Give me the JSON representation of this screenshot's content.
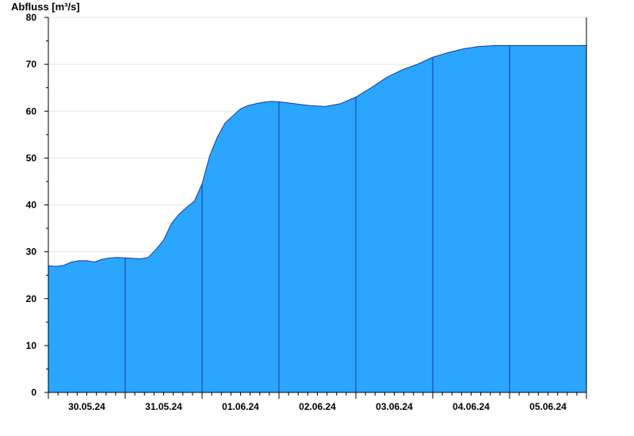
{
  "chart_data": {
    "type": "area",
    "ylabel": "Abfluss [m³/s]",
    "ylim": [
      0,
      80
    ],
    "yticks": [
      0,
      10,
      20,
      30,
      40,
      50,
      60,
      70,
      80
    ],
    "x_day_labels": [
      "30.05.24",
      "31.05.24",
      "01.06.24",
      "02.06.24",
      "03.06.24",
      "04.06.24",
      "05.06.24"
    ],
    "x_range_days": [
      0,
      7
    ],
    "grid": true,
    "fill_color": "#2aa6ff",
    "line_color": "#1a3aa0",
    "series": [
      {
        "x": [
          0.0,
          0.1,
          0.2,
          0.3,
          0.4,
          0.5,
          0.6,
          0.7,
          0.8,
          0.9,
          1.0,
          1.1,
          1.2,
          1.3,
          1.4,
          1.5,
          1.6,
          1.7,
          1.8,
          1.9,
          2.0,
          2.1,
          2.2,
          2.3,
          2.4,
          2.5,
          2.6,
          2.7,
          2.8,
          2.9,
          3.0,
          3.2,
          3.4,
          3.6,
          3.8,
          4.0,
          4.2,
          4.4,
          4.6,
          4.8,
          5.0,
          5.2,
          5.4,
          5.6,
          5.8,
          6.0,
          6.2,
          6.4,
          6.6,
          6.8,
          7.0
        ],
        "values": [
          27.0,
          26.9,
          27.1,
          27.8,
          28.1,
          28.1,
          27.8,
          28.4,
          28.7,
          28.8,
          28.7,
          28.6,
          28.5,
          28.8,
          30.5,
          32.5,
          36.0,
          38.0,
          39.5,
          40.8,
          44.5,
          50.5,
          54.5,
          57.5,
          59.0,
          60.5,
          61.2,
          61.6,
          61.9,
          62.1,
          62.0,
          61.6,
          61.2,
          61.0,
          61.6,
          63.0,
          65.0,
          67.2,
          68.8,
          70.0,
          71.5,
          72.5,
          73.3,
          73.8,
          74.0,
          74.0,
          74.0,
          74.0,
          74.0,
          74.0,
          74.0
        ]
      }
    ]
  }
}
